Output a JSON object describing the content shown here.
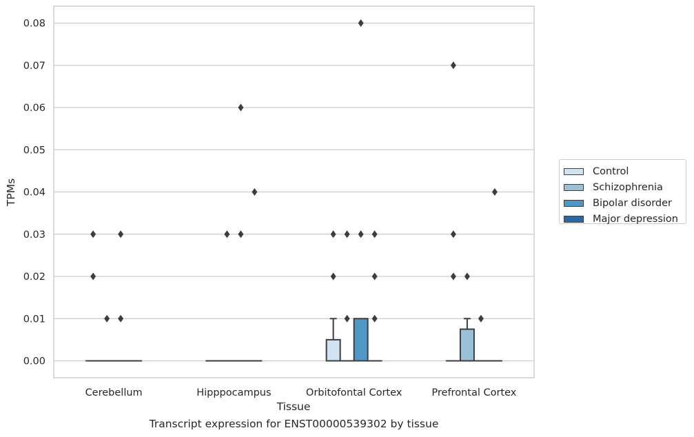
{
  "chart_data": {
    "type": "box",
    "xlabel": "Tissue",
    "ylabel": "TPMs",
    "ylim": [
      -0.004,
      0.084
    ],
    "yticks": [
      "0.00",
      "0.01",
      "0.02",
      "0.03",
      "0.04",
      "0.05",
      "0.06",
      "0.07",
      "0.08"
    ],
    "ytick_values": [
      0,
      0.01,
      0.02,
      0.03,
      0.04,
      0.05,
      0.06,
      0.07,
      0.08
    ],
    "grid": "horizontal",
    "legend_position": "right",
    "categories": [
      "Cerebellum",
      "Hipppocampus",
      "Orbitofontal Cortex",
      "Prefrontal Cortex"
    ],
    "series": [
      {
        "name": "Control",
        "color": "#d1e2f2",
        "boxes": [
          {
            "q1": 0,
            "median": 0,
            "q3": 0,
            "whisker_low": 0,
            "whisker_high": 0,
            "outliers": [
              0.02,
              0.03
            ]
          },
          {
            "q1": 0,
            "median": 0,
            "q3": 0,
            "whisker_low": 0,
            "whisker_high": 0,
            "outliers": []
          },
          {
            "q1": 0,
            "median": 0,
            "q3": 0.005,
            "whisker_low": 0,
            "whisker_high": 0.01,
            "outliers": [
              0.02,
              0.03
            ]
          },
          {
            "q1": 0,
            "median": 0,
            "q3": 0,
            "whisker_low": 0,
            "whisker_high": 0,
            "outliers": [
              0.02,
              0.03,
              0.07
            ]
          }
        ]
      },
      {
        "name": "Schizophrenia",
        "color": "#9ac1dc",
        "boxes": [
          {
            "q1": 0,
            "median": 0,
            "q3": 0,
            "whisker_low": 0,
            "whisker_high": 0,
            "outliers": [
              0.01
            ]
          },
          {
            "q1": 0,
            "median": 0,
            "q3": 0,
            "whisker_low": 0,
            "whisker_high": 0,
            "outliers": [
              0.03
            ]
          },
          {
            "q1": 0,
            "median": 0,
            "q3": 0,
            "whisker_low": 0,
            "whisker_high": 0,
            "outliers": [
              0.01,
              0.03
            ]
          },
          {
            "q1": 0,
            "median": 0,
            "q3": 0.0075,
            "whisker_low": 0,
            "whisker_high": 0.01,
            "outliers": [
              0.02
            ]
          }
        ]
      },
      {
        "name": "Bipolar disorder",
        "color": "#5096c6",
        "boxes": [
          {
            "q1": 0,
            "median": 0,
            "q3": 0,
            "whisker_low": 0,
            "whisker_high": 0,
            "outliers": [
              0.01,
              0.03
            ]
          },
          {
            "q1": 0,
            "median": 0,
            "q3": 0,
            "whisker_low": 0,
            "whisker_high": 0,
            "outliers": [
              0.03,
              0.06
            ]
          },
          {
            "q1": 0,
            "median": 0,
            "q3": 0.01,
            "whisker_low": 0,
            "whisker_high": 0.01,
            "outliers": [
              0.03,
              0.08
            ]
          },
          {
            "q1": 0,
            "median": 0,
            "q3": 0,
            "whisker_low": 0,
            "whisker_high": 0,
            "outliers": [
              0.01
            ]
          }
        ]
      },
      {
        "name": "Major depression",
        "color": "#2a68a6",
        "boxes": [
          {
            "q1": 0,
            "median": 0,
            "q3": 0,
            "whisker_low": 0,
            "whisker_high": 0,
            "outliers": []
          },
          {
            "q1": 0,
            "median": 0,
            "q3": 0,
            "whisker_low": 0,
            "whisker_high": 0,
            "outliers": [
              0.04
            ]
          },
          {
            "q1": 0,
            "median": 0,
            "q3": 0,
            "whisker_low": 0,
            "whisker_high": 0,
            "outliers": [
              0.01,
              0.02,
              0.03
            ]
          },
          {
            "q1": 0,
            "median": 0,
            "q3": 0,
            "whisker_low": 0,
            "whisker_high": 0,
            "outliers": [
              0.04
            ]
          }
        ]
      }
    ]
  },
  "caption": "Transcript expression for ENST00000539302 by tissue"
}
